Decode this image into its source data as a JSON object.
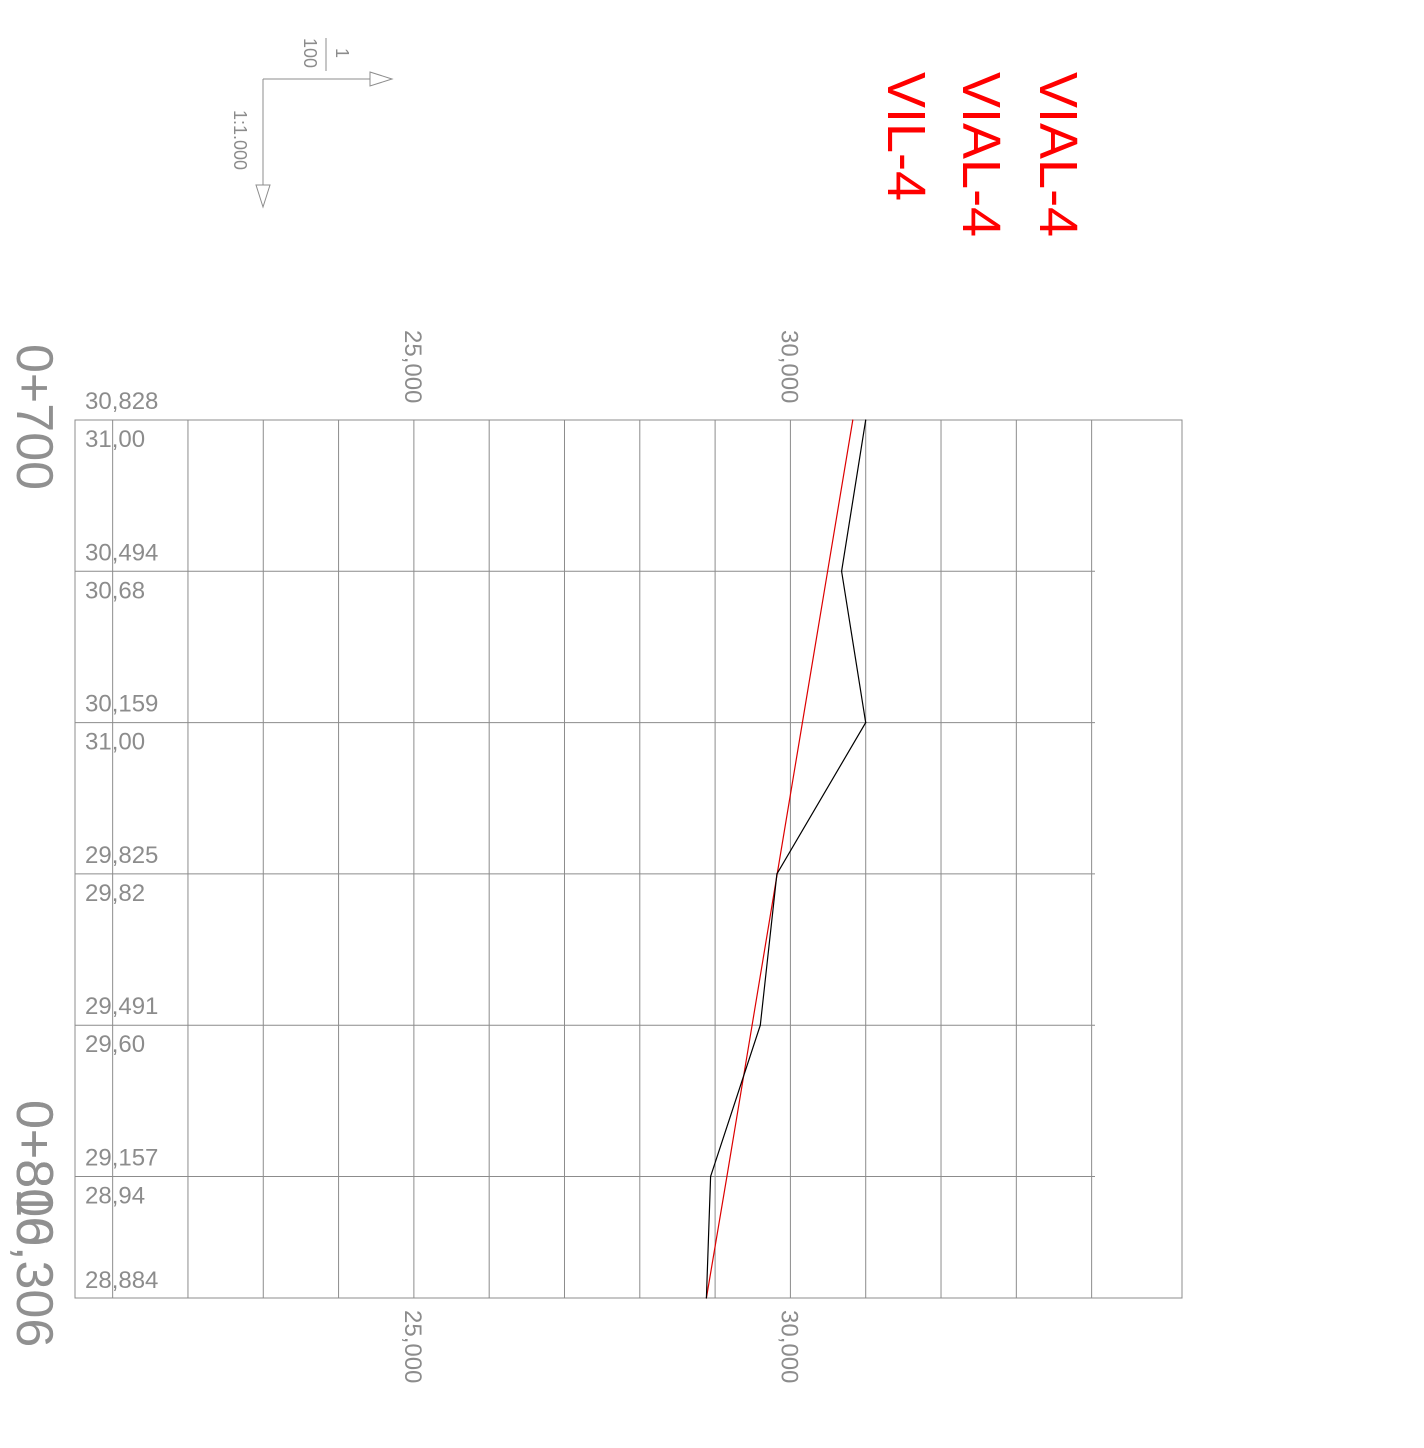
{
  "chart_data": {
    "type": "line",
    "title": [
      "VIAL-4",
      "VIAL-4",
      "VIL-4"
    ],
    "scale_legend": {
      "vertical_ratio_top": "1",
      "vertical_ratio_bottom": "100",
      "horizontal": "1:1.000"
    },
    "stations": [
      {
        "label": "0+700",
        "distance": 0
      },
      {
        "label": "0+800",
        "distance": 100
      },
      {
        "label": "0+816,306",
        "distance": 116.306
      }
    ],
    "elevation_ticks": [
      {
        "value": 25,
        "label": "25,000"
      },
      {
        "value": 30,
        "label": "30,000"
      }
    ],
    "elevation_range": [
      20.5,
      35.2
    ],
    "x": [
      0,
      20,
      40,
      60,
      80,
      100,
      116.306
    ],
    "grade_labels": [
      "30,828",
      "30,494",
      "30,159",
      "29,825",
      "29,491",
      "29,157",
      "28,884"
    ],
    "terrain_labels": [
      "31,00",
      "30,68",
      "31,00",
      "29,82",
      "29,60",
      "28,94",
      ""
    ],
    "series": [
      {
        "key": "grade",
        "color": "#dd0000",
        "values": [
          30.828,
          30.494,
          30.159,
          29.825,
          29.491,
          29.157,
          28.884
        ]
      },
      {
        "key": "terrain",
        "color": "#000000",
        "values": [
          31.0,
          30.68,
          31.0,
          29.82,
          29.6,
          28.94,
          28.884
        ]
      }
    ],
    "grid": true
  }
}
